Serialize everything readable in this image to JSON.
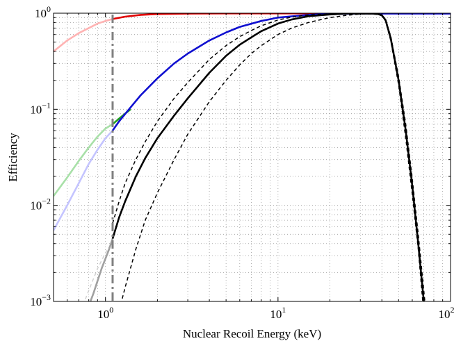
{
  "chart_data": {
    "type": "line",
    "title": "",
    "xlabel": "Nuclear Recoil Energy (keV)",
    "ylabel": "Efficiency",
    "xscale": "log",
    "yscale": "log",
    "xlim": [
      0.5,
      100
    ],
    "ylim": [
      0.001,
      1
    ],
    "grid": true,
    "grid_style": "dotted",
    "x_ticks": [
      {
        "value": 1,
        "base": "10",
        "exp": "0"
      },
      {
        "value": 10,
        "base": "10",
        "exp": "1"
      },
      {
        "value": 100,
        "base": "10",
        "exp": "2"
      }
    ],
    "y_ticks": [
      {
        "value": 0.001,
        "base": "10",
        "exp": "−3"
      },
      {
        "value": 0.01,
        "base": "10",
        "exp": "−2"
      },
      {
        "value": 0.1,
        "base": "10",
        "exp": "−1"
      },
      {
        "value": 1,
        "base": "10",
        "exp": "0"
      }
    ],
    "threshold_line": {
      "x": 1.1,
      "style": "dash-dot",
      "color": "#808080"
    },
    "series": [
      {
        "color": "#ffb3b3",
        "style": "solid",
        "points": [
          [
            0.5,
            0.4
          ],
          [
            0.6,
            0.52
          ],
          [
            0.7,
            0.62
          ],
          [
            0.8,
            0.7
          ],
          [
            0.9,
            0.78
          ],
          [
            1.0,
            0.83
          ],
          [
            1.1,
            0.87
          ]
        ]
      },
      {
        "color": "#e00000",
        "style": "solid",
        "points": [
          [
            1.1,
            0.87
          ],
          [
            1.3,
            0.92
          ],
          [
            1.6,
            0.96
          ],
          [
            2,
            0.98
          ],
          [
            3,
            0.99
          ],
          [
            5,
            0.995
          ],
          [
            100,
            0.995
          ]
        ]
      },
      {
        "color": "#a8e0a8",
        "style": "solid",
        "points": [
          [
            0.5,
            0.0125
          ],
          [
            0.6,
            0.0195
          ],
          [
            0.7,
            0.029
          ],
          [
            0.8,
            0.04
          ],
          [
            0.9,
            0.052
          ],
          [
            1.0,
            0.063
          ],
          [
            1.1,
            0.07
          ]
        ]
      },
      {
        "color": "#20a020",
        "style": "solid",
        "points": [
          [
            1.1,
            0.07
          ],
          [
            1.2,
            0.08
          ],
          [
            1.3,
            0.09
          ],
          [
            1.4,
            0.1
          ]
        ]
      },
      {
        "color": "#c4c4ff",
        "style": "solid",
        "points": [
          [
            0.5,
            0.0055
          ],
          [
            0.6,
            0.01
          ],
          [
            0.7,
            0.017
          ],
          [
            0.8,
            0.027
          ],
          [
            0.9,
            0.038
          ],
          [
            1.0,
            0.05
          ],
          [
            1.1,
            0.06
          ]
        ]
      },
      {
        "color": "#1010d0",
        "style": "solid",
        "points": [
          [
            1.1,
            0.06
          ],
          [
            1.2,
            0.075
          ],
          [
            1.4,
            0.105
          ],
          [
            1.6,
            0.14
          ],
          [
            2,
            0.21
          ],
          [
            2.5,
            0.3
          ],
          [
            3,
            0.38
          ],
          [
            4,
            0.52
          ],
          [
            5,
            0.63
          ],
          [
            6,
            0.72
          ],
          [
            8,
            0.83
          ],
          [
            10,
            0.9
          ],
          [
            15,
            0.96
          ],
          [
            20,
            0.98
          ],
          [
            30,
            0.99
          ],
          [
            100,
            0.99
          ]
        ]
      },
      {
        "color": "#d0d0d0",
        "style": "dashed",
        "points": [
          [
            0.72,
            0.0008
          ],
          [
            0.8,
            0.0013
          ],
          [
            0.9,
            0.0022
          ],
          [
            1.0,
            0.0032
          ],
          [
            1.1,
            0.0042
          ]
        ]
      },
      {
        "color": "#a0a0a0",
        "style": "solid",
        "points": [
          [
            0.78,
            0.0008
          ],
          [
            0.85,
            0.0012
          ],
          [
            0.95,
            0.0022
          ],
          [
            1.05,
            0.0035
          ],
          [
            1.1,
            0.0045
          ]
        ]
      },
      {
        "color": "#000000",
        "style": "solid",
        "points": [
          [
            1.1,
            0.0045
          ],
          [
            1.2,
            0.0075
          ],
          [
            1.3,
            0.011
          ],
          [
            1.5,
            0.02
          ],
          [
            1.7,
            0.031
          ],
          [
            2,
            0.05
          ],
          [
            2.5,
            0.086
          ],
          [
            3,
            0.13
          ],
          [
            4,
            0.24
          ],
          [
            5,
            0.36
          ],
          [
            6,
            0.47
          ],
          [
            7,
            0.56
          ],
          [
            8,
            0.65
          ],
          [
            10,
            0.78
          ],
          [
            12,
            0.86
          ],
          [
            15,
            0.93
          ],
          [
            20,
            0.97
          ],
          [
            25,
            0.99
          ],
          [
            30,
            0.99
          ],
          [
            35,
            0.99
          ],
          [
            38,
            0.98
          ],
          [
            40,
            0.95
          ],
          [
            42,
            0.85
          ],
          [
            45,
            0.55
          ],
          [
            50,
            0.2
          ],
          [
            55,
            0.06
          ],
          [
            60,
            0.016
          ],
          [
            65,
            0.004
          ],
          [
            70,
            0.001
          ]
        ]
      },
      {
        "color": "#000000",
        "style": "dashed",
        "points": [
          [
            1.2,
            0.0008
          ],
          [
            1.3,
            0.0014
          ],
          [
            1.5,
            0.0035
          ],
          [
            1.7,
            0.007
          ],
          [
            2,
            0.0135
          ],
          [
            2.5,
            0.03
          ],
          [
            3,
            0.055
          ],
          [
            4,
            0.12
          ],
          [
            5,
            0.2
          ],
          [
            6,
            0.29
          ],
          [
            7,
            0.38
          ],
          [
            8,
            0.46
          ],
          [
            10,
            0.6
          ],
          [
            12,
            0.7
          ],
          [
            15,
            0.8
          ],
          [
            20,
            0.9
          ],
          [
            25,
            0.95
          ],
          [
            30,
            0.98
          ],
          [
            35,
            0.98
          ],
          [
            38,
            0.97
          ],
          [
            40,
            0.94
          ],
          [
            42,
            0.85
          ],
          [
            45,
            0.58
          ],
          [
            50,
            0.22
          ],
          [
            55,
            0.07
          ],
          [
            60,
            0.019
          ],
          [
            65,
            0.005
          ],
          [
            71,
            0.001
          ]
        ]
      },
      {
        "color": "#000000",
        "style": "dashed",
        "points": [
          [
            1.1,
            0.0065
          ],
          [
            1.2,
            0.011
          ],
          [
            1.3,
            0.017
          ],
          [
            1.5,
            0.03
          ],
          [
            1.7,
            0.046
          ],
          [
            2,
            0.075
          ],
          [
            2.5,
            0.13
          ],
          [
            3,
            0.19
          ],
          [
            4,
            0.33
          ],
          [
            5,
            0.46
          ],
          [
            6,
            0.57
          ],
          [
            7,
            0.66
          ],
          [
            8,
            0.74
          ],
          [
            10,
            0.85
          ],
          [
            12,
            0.91
          ],
          [
            15,
            0.96
          ],
          [
            20,
            0.98
          ],
          [
            30,
            0.99
          ],
          [
            35,
            0.99
          ],
          [
            38,
            0.98
          ],
          [
            40,
            0.94
          ],
          [
            42,
            0.83
          ],
          [
            45,
            0.52
          ],
          [
            50,
            0.18
          ],
          [
            55,
            0.05
          ],
          [
            60,
            0.013
          ],
          [
            65,
            0.0035
          ],
          [
            69,
            0.001
          ]
        ]
      }
    ]
  }
}
